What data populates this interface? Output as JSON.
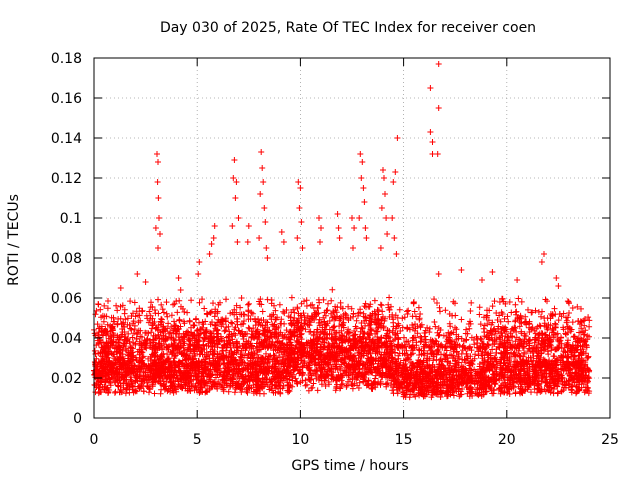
{
  "chart_data": {
    "type": "scatter",
    "title": "Day 030 of 2025, Rate Of TEC Index for receiver coen",
    "xlabel": "GPS time / hours",
    "ylabel": "ROTI / TECUs",
    "xlim": [
      0,
      25
    ],
    "ylim": [
      0,
      0.18
    ],
    "xticks": [
      0,
      5,
      10,
      15,
      20,
      25
    ],
    "yticks": [
      0,
      0.02,
      0.04,
      0.06,
      0.08,
      0.1,
      0.12,
      0.14,
      0.16,
      0.18
    ],
    "xtick_labels": [
      "0",
      "5",
      "10",
      "15",
      "20",
      "25"
    ],
    "ytick_labels": [
      "0",
      "0.02",
      "0.04",
      "0.06",
      "0.08",
      "0.1",
      "0.12",
      "0.14",
      "0.16",
      "0.18"
    ],
    "grid": true,
    "marker": "+",
    "color": "#ff0000",
    "series": [
      {
        "x_range": [
          0,
          24
        ],
        "points": [
          [
            3.05,
            0.132
          ],
          [
            3.1,
            0.128
          ],
          [
            3.08,
            0.118
          ],
          [
            3.12,
            0.11
          ],
          [
            3.15,
            0.1
          ],
          [
            3.0,
            0.095
          ],
          [
            3.2,
            0.092
          ],
          [
            3.1,
            0.085
          ],
          [
            6.8,
            0.129
          ],
          [
            6.75,
            0.12
          ],
          [
            6.9,
            0.118
          ],
          [
            6.85,
            0.11
          ],
          [
            7.0,
            0.1
          ],
          [
            6.7,
            0.096
          ],
          [
            6.95,
            0.088
          ],
          [
            8.1,
            0.133
          ],
          [
            8.15,
            0.125
          ],
          [
            8.2,
            0.118
          ],
          [
            8.05,
            0.112
          ],
          [
            8.25,
            0.105
          ],
          [
            8.3,
            0.098
          ],
          [
            8.0,
            0.09
          ],
          [
            8.35,
            0.085
          ],
          [
            8.4,
            0.08
          ],
          [
            9.9,
            0.118
          ],
          [
            10.0,
            0.115
          ],
          [
            9.95,
            0.105
          ],
          [
            10.05,
            0.098
          ],
          [
            9.85,
            0.09
          ],
          [
            10.1,
            0.085
          ],
          [
            10.9,
            0.1
          ],
          [
            11.0,
            0.095
          ],
          [
            10.95,
            0.088
          ],
          [
            11.8,
            0.102
          ],
          [
            11.85,
            0.095
          ],
          [
            11.9,
            0.09
          ],
          [
            12.5,
            0.1
          ],
          [
            12.6,
            0.095
          ],
          [
            12.55,
            0.085
          ],
          [
            12.9,
            0.132
          ],
          [
            13.0,
            0.128
          ],
          [
            12.95,
            0.12
          ],
          [
            13.05,
            0.115
          ],
          [
            13.1,
            0.108
          ],
          [
            12.85,
            0.1
          ],
          [
            13.15,
            0.095
          ],
          [
            13.2,
            0.09
          ],
          [
            14.0,
            0.124
          ],
          [
            14.05,
            0.12
          ],
          [
            14.1,
            0.112
          ],
          [
            13.95,
            0.105
          ],
          [
            14.15,
            0.1
          ],
          [
            14.2,
            0.092
          ],
          [
            13.9,
            0.085
          ],
          [
            14.7,
            0.14
          ],
          [
            14.6,
            0.123
          ],
          [
            14.5,
            0.118
          ],
          [
            14.45,
            0.1
          ],
          [
            14.55,
            0.09
          ],
          [
            14.65,
            0.082
          ],
          [
            16.3,
            0.165
          ],
          [
            16.3,
            0.143
          ],
          [
            16.4,
            0.138
          ],
          [
            16.4,
            0.132
          ],
          [
            16.7,
            0.177
          ],
          [
            16.7,
            0.155
          ],
          [
            16.65,
            0.132
          ],
          [
            16.7,
            0.072
          ],
          [
            17.8,
            0.074
          ],
          [
            18.8,
            0.069
          ],
          [
            19.3,
            0.073
          ],
          [
            20.5,
            0.069
          ],
          [
            21.8,
            0.082
          ],
          [
            21.7,
            0.078
          ],
          [
            4.1,
            0.07
          ],
          [
            4.2,
            0.064
          ],
          [
            5.1,
            0.078
          ],
          [
            5.05,
            0.072
          ],
          [
            5.6,
            0.082
          ],
          [
            5.7,
            0.087
          ],
          [
            5.8,
            0.09
          ],
          [
            5.85,
            0.096
          ],
          [
            7.5,
            0.096
          ],
          [
            7.45,
            0.088
          ],
          [
            9.1,
            0.093
          ],
          [
            9.2,
            0.088
          ],
          [
            1.3,
            0.065
          ],
          [
            2.1,
            0.072
          ],
          [
            2.5,
            0.068
          ],
          [
            22.4,
            0.07
          ],
          [
            22.5,
            0.066
          ],
          [
            23.0,
            0.058
          ],
          [
            23.2,
            0.055
          ],
          [
            19.8,
            0.052
          ],
          [
            15.5,
            0.058
          ],
          [
            15.8,
            0.052
          ]
        ]
      }
    ]
  }
}
